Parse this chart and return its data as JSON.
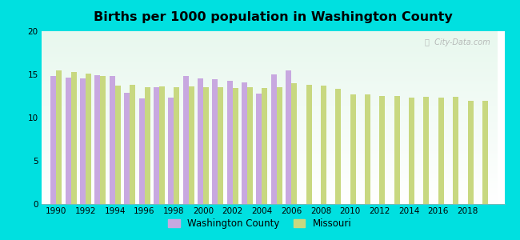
{
  "title": "Births per 1000 population in Washington County",
  "background_color": "#00e0e0",
  "wc_color": "#c8a8e0",
  "mo_color": "#c8d880",
  "ylim": [
    0,
    20
  ],
  "yticks": [
    0,
    5,
    10,
    15,
    20
  ],
  "xticks": [
    1990,
    1992,
    1994,
    1996,
    1998,
    2000,
    2002,
    2004,
    2006,
    2008,
    2010,
    2012,
    2014,
    2016,
    2018
  ],
  "legend_wc": "Washington County",
  "legend_mo": "Missouri",
  "wc_years": [
    1990,
    1991,
    1992,
    1993,
    1994,
    1995,
    1996,
    1997,
    1998,
    1999,
    2000,
    2001,
    2002,
    2003,
    2004,
    2005,
    2006
  ],
  "wc_values": [
    14.8,
    14.6,
    14.5,
    14.9,
    14.8,
    12.9,
    12.2,
    13.5,
    12.3,
    14.8,
    14.5,
    14.4,
    14.3,
    14.1,
    12.8,
    15.0,
    15.5
  ],
  "mo_years": [
    1990,
    1991,
    1992,
    1993,
    1994,
    1995,
    1996,
    1997,
    1998,
    1999,
    2000,
    2001,
    2002,
    2003,
    2004,
    2005,
    2006,
    2007,
    2008,
    2009,
    2010,
    2011,
    2012,
    2013,
    2014,
    2015,
    2016,
    2017,
    2018,
    2019
  ],
  "mo_values": [
    15.5,
    15.3,
    15.1,
    14.8,
    13.7,
    13.8,
    13.5,
    13.6,
    13.5,
    13.6,
    13.5,
    13.5,
    13.4,
    13.5,
    13.4,
    13.5,
    14.0,
    13.8,
    13.7,
    13.3,
    12.7,
    12.7,
    12.5,
    12.5,
    12.3,
    12.4,
    12.3,
    12.4,
    11.9,
    11.9
  ]
}
